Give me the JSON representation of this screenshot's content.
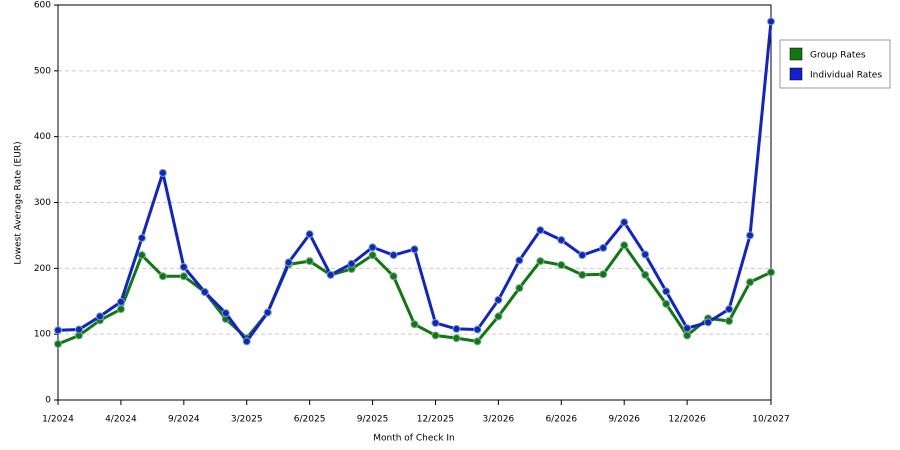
{
  "chart_data": {
    "type": "line",
    "x_label": "Month of Check In",
    "y_label": "Lowest Average Rate (EUR)",
    "categories": [
      "1/2024",
      null,
      null,
      "4/2024",
      null,
      null,
      "9/2024",
      null,
      null,
      "3/2025",
      null,
      null,
      "6/2025",
      null,
      null,
      "9/2025",
      null,
      null,
      "12/2025",
      null,
      null,
      "3/2026",
      null,
      null,
      "6/2026",
      null,
      null,
      "9/2026",
      null,
      null,
      "12/2026",
      null,
      null,
      null,
      "10/2027"
    ],
    "series": [
      {
        "name": "Group Rates",
        "color": "#117711",
        "values": [
          85,
          98,
          121,
          138,
          220,
          188,
          188,
          164,
          123,
          94,
          133,
          206,
          211,
          190,
          199,
          220,
          188,
          115,
          98,
          94,
          89,
          127,
          170,
          211,
          205,
          190,
          191,
          235,
          190,
          146,
          98,
          124,
          120,
          179,
          194
        ]
      },
      {
        "name": "Individual Rates",
        "color": "#1122cc",
        "values": [
          106,
          107,
          127,
          149,
          246,
          345,
          202,
          164,
          132,
          89,
          133,
          209,
          252,
          190,
          207,
          232,
          220,
          229,
          117,
          108,
          107,
          152,
          212,
          258,
          243,
          220,
          231,
          270,
          221,
          165,
          109,
          118,
          138,
          250,
          575
        ]
      }
    ],
    "ylim": [
      0,
      600
    ],
    "yticks": [
      0,
      100,
      200,
      300,
      400,
      500,
      600
    ],
    "grid": true,
    "legend": "right"
  }
}
